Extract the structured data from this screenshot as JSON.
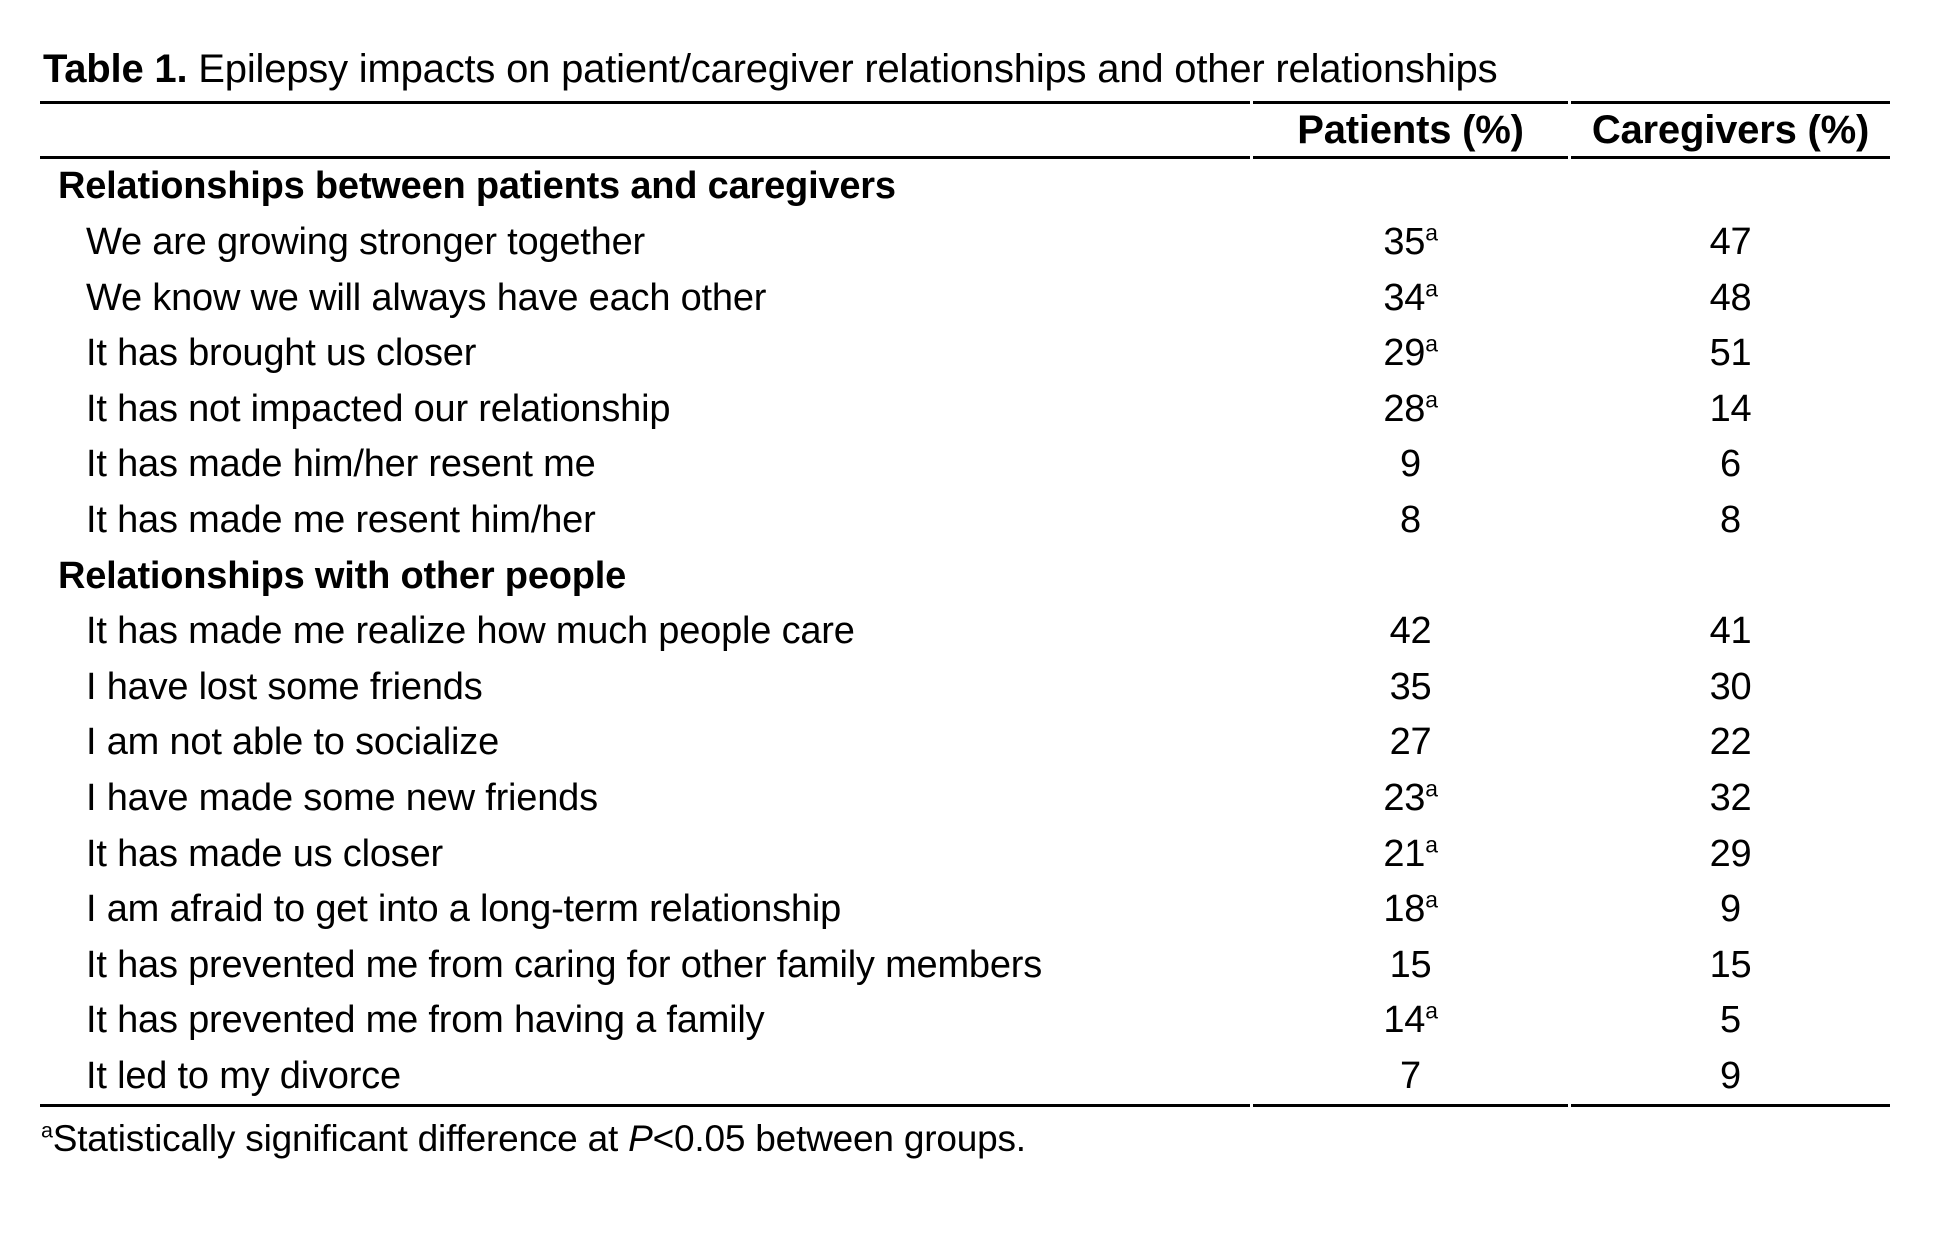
{
  "title": {
    "prefix": "Table 1.",
    "text": " Epilepsy impacts on patient/caregiver relationships and other relationships"
  },
  "header": {
    "patients": "Patients (%)",
    "caregivers": "Caregivers (%)"
  },
  "rows": [
    {
      "type": "section",
      "label": "Relationships between patients and caregivers"
    },
    {
      "type": "item",
      "label": "We are growing stronger together",
      "p": {
        "v": "35",
        "s": "a"
      },
      "c": {
        "v": "47"
      }
    },
    {
      "type": "item",
      "label": "We know we will always have each other",
      "p": {
        "v": "34",
        "s": "a"
      },
      "c": {
        "v": "48"
      }
    },
    {
      "type": "item",
      "label": "It has brought us closer",
      "p": {
        "v": "29",
        "s": "a"
      },
      "c": {
        "v": "51"
      }
    },
    {
      "type": "item",
      "label": "It has not impacted our relationship",
      "p": {
        "v": "28",
        "s": "a"
      },
      "c": {
        "v": "14"
      }
    },
    {
      "type": "item",
      "label": "It has made him/her resent me",
      "p": {
        "v": "9"
      },
      "c": {
        "v": "6"
      }
    },
    {
      "type": "item",
      "label": "It has made me resent him/her",
      "p": {
        "v": "8"
      },
      "c": {
        "v": "8"
      }
    },
    {
      "type": "section",
      "label": "Relationships with other people"
    },
    {
      "type": "item",
      "label": "It has made me realize how much people care",
      "p": {
        "v": "42"
      },
      "c": {
        "v": "41"
      }
    },
    {
      "type": "item",
      "label": "I have lost some friends",
      "p": {
        "v": "35"
      },
      "c": {
        "v": "30"
      }
    },
    {
      "type": "item",
      "label": "I am not able to socialize",
      "p": {
        "v": "27"
      },
      "c": {
        "v": "22"
      }
    },
    {
      "type": "item",
      "label": "I have made some new friends",
      "p": {
        "v": "23",
        "s": "a"
      },
      "c": {
        "v": "32"
      }
    },
    {
      "type": "item",
      "label": "It has made us closer",
      "p": {
        "v": "21",
        "s": "a"
      },
      "c": {
        "v": "29"
      }
    },
    {
      "type": "item",
      "label": "I am afraid to get into a long-term relationship",
      "p": {
        "v": "18",
        "s": "a"
      },
      "c": {
        "v": "9"
      }
    },
    {
      "type": "item",
      "label": "It has prevented me from caring for other family members",
      "p": {
        "v": "15"
      },
      "c": {
        "v": "15"
      }
    },
    {
      "type": "item",
      "label": "It has prevented me from having a family",
      "p": {
        "v": "14",
        "s": "a"
      },
      "c": {
        "v": "5"
      }
    },
    {
      "type": "item",
      "label": "It led to my divorce",
      "p": {
        "v": "7"
      },
      "c": {
        "v": "9"
      }
    }
  ],
  "footnote": {
    "marker": "a",
    "text_before_p": "Statistically significant difference at ",
    "p_symbol": "P",
    "text_after_p": "<0.05 between groups."
  }
}
